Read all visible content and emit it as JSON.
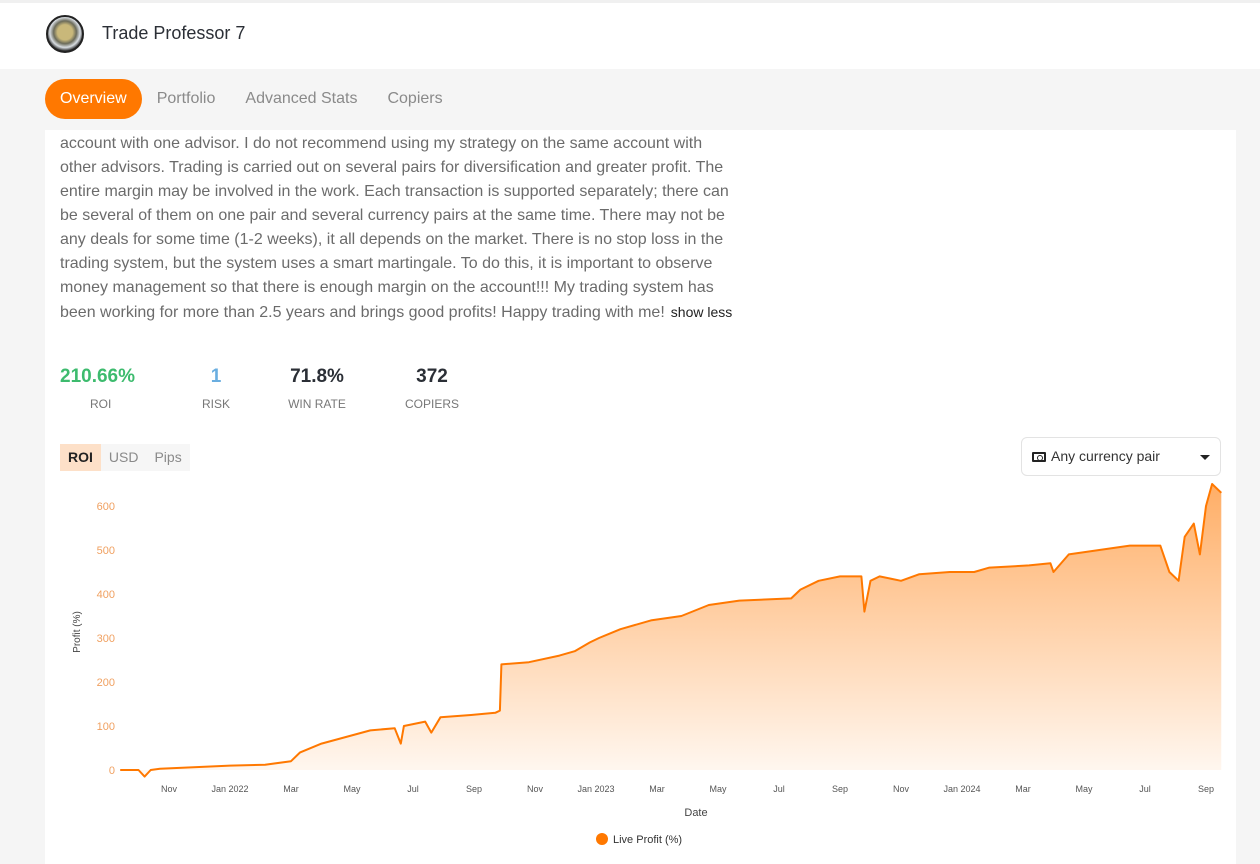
{
  "header": {
    "title": "Trade Professor 7"
  },
  "tabs": [
    "Overview",
    "Portfolio",
    "Advanced Stats",
    "Copiers"
  ],
  "description": "account with one advisor. I do not recommend using my strategy on the same account with other advisors. Trading is carried out on several pairs for diversification and greater profit. The entire margin may be involved in the work. Each transaction is supported separately; there can be several of them on one pair and several currency pairs at the same time. There may not be any deals for some time (1-2 weeks), it all depends on the market. There is no stop loss in the trading system, but the system uses a smart martingale. To do this, it is important to observe money management so that there is enough margin on the account!!! My trading system has been working for more than 2.5 years and brings good profits! Happy trading with me!",
  "show_less": "show less",
  "stats": [
    {
      "value": "210.66%",
      "label": "ROI",
      "color": "#3dbb6e"
    },
    {
      "value": "1",
      "label": "RISK",
      "color": "#6aaee0"
    },
    {
      "value": "71.8%",
      "label": "WIN RATE",
      "color": "#2b2f36"
    },
    {
      "value": "372",
      "label": "COPIERS",
      "color": "#2b2f36"
    }
  ],
  "chart_toggle": [
    "ROI",
    "USD",
    "Pips"
  ],
  "currency_select": "Any currency pair",
  "chart_data": {
    "type": "area",
    "xlabel": "Date",
    "ylabel": "Profit (%)",
    "ylim": [
      0,
      600
    ],
    "yticks": [
      0,
      100,
      200,
      300,
      400,
      500,
      600
    ],
    "x_unit": "months since Jan 2022",
    "xticks": [
      {
        "m": -2,
        "label": "Nov"
      },
      {
        "m": 0,
        "label": "Jan 2022"
      },
      {
        "m": 2,
        "label": "Mar"
      },
      {
        "m": 4,
        "label": "May"
      },
      {
        "m": 6,
        "label": "Jul"
      },
      {
        "m": 8,
        "label": "Sep"
      },
      {
        "m": 10,
        "label": "Nov"
      },
      {
        "m": 12,
        "label": "Jan 2023"
      },
      {
        "m": 14,
        "label": "Mar"
      },
      {
        "m": 16,
        "label": "May"
      },
      {
        "m": 18,
        "label": "Jul"
      },
      {
        "m": 20,
        "label": "Sep"
      },
      {
        "m": 22,
        "label": "Nov"
      },
      {
        "m": 24,
        "label": "Jan 2024"
      },
      {
        "m": 26,
        "label": "Mar"
      },
      {
        "m": 28,
        "label": "May"
      },
      {
        "m": 30,
        "label": "Jul"
      },
      {
        "m": 32,
        "label": "Sep"
      }
    ],
    "legend": "Live Profit (%)",
    "legend_position": "bottom",
    "color": "#ff7800",
    "series": [
      [
        -3.6,
        0
      ],
      [
        -3.0,
        0
      ],
      [
        -2.8,
        -15
      ],
      [
        -2.6,
        0
      ],
      [
        -2.3,
        3
      ],
      [
        0,
        10
      ],
      [
        1.15,
        12
      ],
      [
        2.0,
        20
      ],
      [
        2.3,
        40
      ],
      [
        3.0,
        60
      ],
      [
        3.8,
        75
      ],
      [
        4.6,
        90
      ],
      [
        5.4,
        95
      ],
      [
        5.6,
        60
      ],
      [
        5.7,
        100
      ],
      [
        6.4,
        110
      ],
      [
        6.6,
        85
      ],
      [
        6.9,
        120
      ],
      [
        7.9,
        125
      ],
      [
        8.7,
        130
      ],
      [
        8.85,
        135
      ],
      [
        8.9,
        240
      ],
      [
        9.8,
        245
      ],
      [
        10.8,
        260
      ],
      [
        11.3,
        270
      ],
      [
        11.8,
        290
      ],
      [
        12.1,
        300
      ],
      [
        12.8,
        320
      ],
      [
        13.8,
        340
      ],
      [
        14.8,
        350
      ],
      [
        15.7,
        375
      ],
      [
        16.7,
        385
      ],
      [
        18.4,
        390
      ],
      [
        18.7,
        410
      ],
      [
        19.3,
        430
      ],
      [
        20.0,
        440
      ],
      [
        20.7,
        440
      ],
      [
        20.8,
        360
      ],
      [
        21.0,
        430
      ],
      [
        21.3,
        440
      ],
      [
        22.0,
        430
      ],
      [
        22.6,
        445
      ],
      [
        23.6,
        450
      ],
      [
        24.4,
        450
      ],
      [
        24.9,
        460
      ],
      [
        26.2,
        465
      ],
      [
        26.9,
        470
      ],
      [
        27.0,
        450
      ],
      [
        27.5,
        490
      ],
      [
        28.5,
        500
      ],
      [
        29.5,
        510
      ],
      [
        30.5,
        510
      ],
      [
        30.8,
        450
      ],
      [
        31.1,
        430
      ],
      [
        31.3,
        530
      ],
      [
        31.6,
        560
      ],
      [
        31.8,
        490
      ],
      [
        32.0,
        600
      ],
      [
        32.2,
        650
      ],
      [
        32.5,
        630
      ]
    ]
  }
}
